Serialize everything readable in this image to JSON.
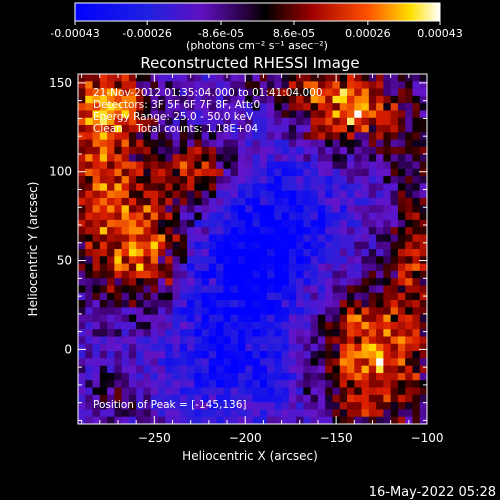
{
  "colorbar": {
    "tick_labels": [
      "-0.00043",
      "-0.00026",
      "-8.6e-05",
      "8.6e-05",
      "0.00026",
      "0.00043"
    ],
    "units_label": "(photons cm⁻² s⁻¹ asec⁻²)",
    "range": [
      -0.00043,
      0.00043
    ]
  },
  "chart_data": {
    "type": "heatmap",
    "title": "Reconstructed RHESSI Image",
    "xlabel": "Heliocentric X (arcsec)",
    "ylabel": "Heliocentric Y (arcsec)",
    "xlim": [
      -292,
      -100
    ],
    "ylim": [
      -42,
      155
    ],
    "x_ticks": [
      -250,
      -200,
      -150,
      -100
    ],
    "y_ticks": [
      0,
      50,
      100,
      150
    ],
    "x_tick_labels": [
      "−250",
      "−200",
      "−150",
      "−100"
    ],
    "y_tick_labels": [
      "0",
      "50",
      "100",
      "150"
    ],
    "info_lines": [
      "21-Nov-2012 01:35:04.000 to 01:41:04.000",
      "Detectors: 3F 5F 6F 7F 8F, Att:0",
      "Energy Range: 25.0 - 50.0 keV",
      "Clean    Total counts: 1.18E+04"
    ],
    "peak_label": "Position of Peak = [-145,136]",
    "peak": [
      -145,
      136
    ],
    "blobs": [
      {
        "x": -280,
        "y": 110,
        "sx": 16,
        "sy": 40,
        "amp": 0.00035
      },
      {
        "x": -252,
        "y": 55,
        "sx": 20,
        "sy": 24,
        "amp": 0.00043
      },
      {
        "x": -228,
        "y": 100,
        "sx": 16,
        "sy": 13,
        "amp": 0.00033
      },
      {
        "x": -268,
        "y": 140,
        "sx": 14,
        "sy": 12,
        "amp": 0.00022
      },
      {
        "x": -185,
        "y": 150,
        "sx": 18,
        "sy": 8,
        "amp": 0.00014
      },
      {
        "x": -145,
        "y": 136,
        "sx": 20,
        "sy": 16,
        "amp": 0.00043
      },
      {
        "x": -110,
        "y": 110,
        "sx": 10,
        "sy": 22,
        "amp": 0.00016
      },
      {
        "x": -130,
        "y": -5,
        "sx": 22,
        "sy": 30,
        "amp": 0.00043
      },
      {
        "x": -108,
        "y": 55,
        "sx": 8,
        "sy": 18,
        "amp": 0.00026
      },
      {
        "x": -270,
        "y": -25,
        "sx": 14,
        "sy": 12,
        "amp": 0.00012
      },
      {
        "x": -215,
        "y": 40,
        "sx": 30,
        "sy": 35,
        "amp": -0.00024
      },
      {
        "x": -180,
        "y": 70,
        "sx": 25,
        "sy": 30,
        "amp": -0.00018
      },
      {
        "x": -200,
        "y": -15,
        "sx": 28,
        "sy": 18,
        "amp": -0.00012
      }
    ]
  },
  "timestamp": "16-May-2022 05:28"
}
